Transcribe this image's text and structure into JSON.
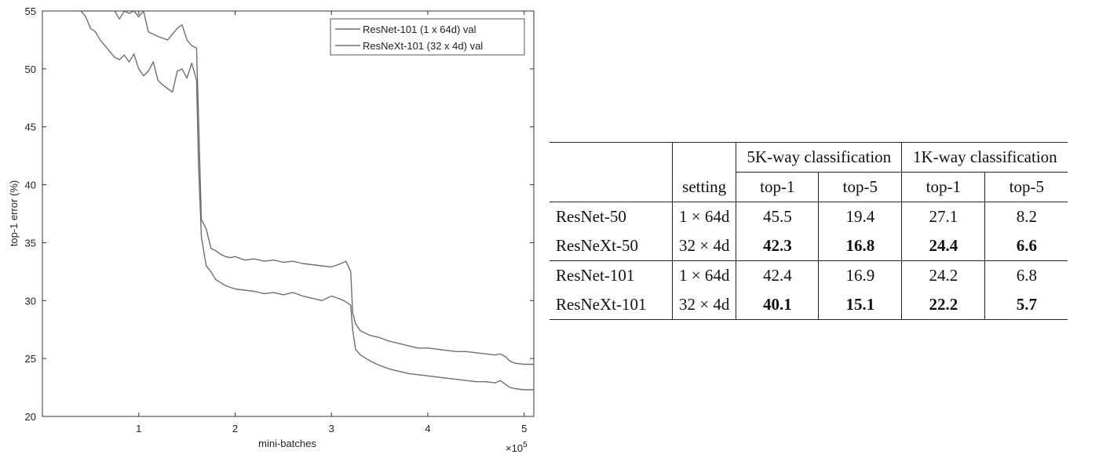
{
  "chart_data": [
    {
      "type": "line",
      "title": "",
      "xlabel": "mini-batches",
      "ylabel": "top-1 error (%)",
      "x_multiplier": "×10",
      "x_multiplier_exp": "5",
      "xlim": [
        0.0,
        5.1
      ],
      "ylim": [
        20,
        55
      ],
      "xticks": [
        1,
        2,
        3,
        4,
        5
      ],
      "yticks": [
        20,
        25,
        30,
        35,
        40,
        45,
        50,
        55
      ],
      "grid": false,
      "legend_position": "top-right",
      "line_color": "#6e6e72",
      "series": [
        {
          "name": "ResNet-101 (1 x 64d) val",
          "x": [
            0.4,
            0.5,
            0.6,
            0.7,
            0.75,
            0.8,
            0.85,
            0.9,
            0.95,
            1.0,
            1.05,
            1.1,
            1.2,
            1.3,
            1.35,
            1.4,
            1.45,
            1.5,
            1.55,
            1.6,
            1.62,
            1.65,
            1.7,
            1.75,
            1.8,
            1.85,
            1.9,
            1.95,
            2.0,
            2.1,
            2.2,
            2.3,
            2.4,
            2.5,
            2.6,
            2.7,
            2.8,
            2.9,
            3.0,
            3.1,
            3.15,
            3.2,
            3.22,
            3.25,
            3.3,
            3.4,
            3.5,
            3.6,
            3.7,
            3.8,
            3.9,
            4.0,
            4.1,
            4.2,
            4.3,
            4.4,
            4.5,
            4.6,
            4.7,
            4.75,
            4.8,
            4.85,
            4.9,
            5.0,
            5.1
          ],
          "y": [
            55.0,
            55.0,
            55.0,
            55.0,
            55.0,
            54.3,
            55.0,
            54.8,
            55.0,
            54.5,
            55.0,
            53.2,
            52.8,
            52.5,
            53.0,
            53.5,
            53.8,
            52.5,
            52.0,
            51.8,
            46.0,
            37.0,
            36.2,
            34.5,
            34.3,
            34.0,
            33.8,
            33.7,
            33.8,
            33.5,
            33.6,
            33.4,
            33.5,
            33.3,
            33.4,
            33.2,
            33.1,
            33.0,
            32.9,
            33.2,
            33.4,
            32.5,
            29.0,
            28.0,
            27.4,
            27.0,
            26.8,
            26.5,
            26.3,
            26.1,
            25.9,
            25.9,
            25.8,
            25.7,
            25.6,
            25.6,
            25.5,
            25.4,
            25.3,
            25.4,
            25.2,
            24.8,
            24.6,
            24.5,
            24.5
          ]
        },
        {
          "name": "ResNeXt-101 (32 x 4d) val",
          "x": [
            0.4,
            0.45,
            0.5,
            0.55,
            0.6,
            0.65,
            0.7,
            0.75,
            0.8,
            0.85,
            0.9,
            0.95,
            1.0,
            1.05,
            1.1,
            1.15,
            1.2,
            1.25,
            1.3,
            1.35,
            1.4,
            1.45,
            1.5,
            1.55,
            1.6,
            1.62,
            1.65,
            1.7,
            1.75,
            1.8,
            1.9,
            2.0,
            2.1,
            2.2,
            2.3,
            2.4,
            2.5,
            2.6,
            2.7,
            2.8,
            2.9,
            3.0,
            3.1,
            3.15,
            3.2,
            3.22,
            3.25,
            3.3,
            3.4,
            3.5,
            3.6,
            3.7,
            3.8,
            3.9,
            4.0,
            4.1,
            4.2,
            4.3,
            4.4,
            4.5,
            4.6,
            4.7,
            4.75,
            4.8,
            4.85,
            4.9,
            5.0,
            5.1
          ],
          "y": [
            55.0,
            54.5,
            53.5,
            53.2,
            52.5,
            52.0,
            51.5,
            51.0,
            50.8,
            51.2,
            50.6,
            51.3,
            50.0,
            49.4,
            49.8,
            50.6,
            49.0,
            48.6,
            48.3,
            48.0,
            49.8,
            50.0,
            49.2,
            50.5,
            49.0,
            42.0,
            35.5,
            33.0,
            32.5,
            31.8,
            31.3,
            31.0,
            30.9,
            30.8,
            30.6,
            30.7,
            30.5,
            30.7,
            30.4,
            30.2,
            30.0,
            30.4,
            30.1,
            29.9,
            29.6,
            27.5,
            25.8,
            25.3,
            24.8,
            24.4,
            24.1,
            23.9,
            23.7,
            23.6,
            23.5,
            23.4,
            23.3,
            23.2,
            23.1,
            23.0,
            23.0,
            22.9,
            23.1,
            22.8,
            22.5,
            22.4,
            22.3,
            22.3
          ]
        }
      ]
    },
    {
      "type": "table",
      "header_groups": [
        "5K-way classification",
        "1K-way classification"
      ],
      "setting_header": "setting",
      "sub_headers": [
        "top-1",
        "top-5",
        "top-1",
        "top-5"
      ],
      "rows": [
        {
          "model": "ResNet-50",
          "setting": "1 × 64d",
          "values": [
            "45.5",
            "19.4",
            "27.1",
            "8.2"
          ],
          "bold": false
        },
        {
          "model": "ResNeXt-50",
          "setting": "32 × 4d",
          "values": [
            "42.3",
            "16.8",
            "24.4",
            "6.6"
          ],
          "bold": true
        },
        {
          "model": "ResNet-101",
          "setting": "1 × 64d",
          "values": [
            "42.4",
            "16.9",
            "24.2",
            "6.8"
          ],
          "bold": false
        },
        {
          "model": "ResNeXt-101",
          "setting": "32 × 4d",
          "values": [
            "40.1",
            "15.1",
            "22.2",
            "5.7"
          ],
          "bold": true
        }
      ]
    }
  ]
}
